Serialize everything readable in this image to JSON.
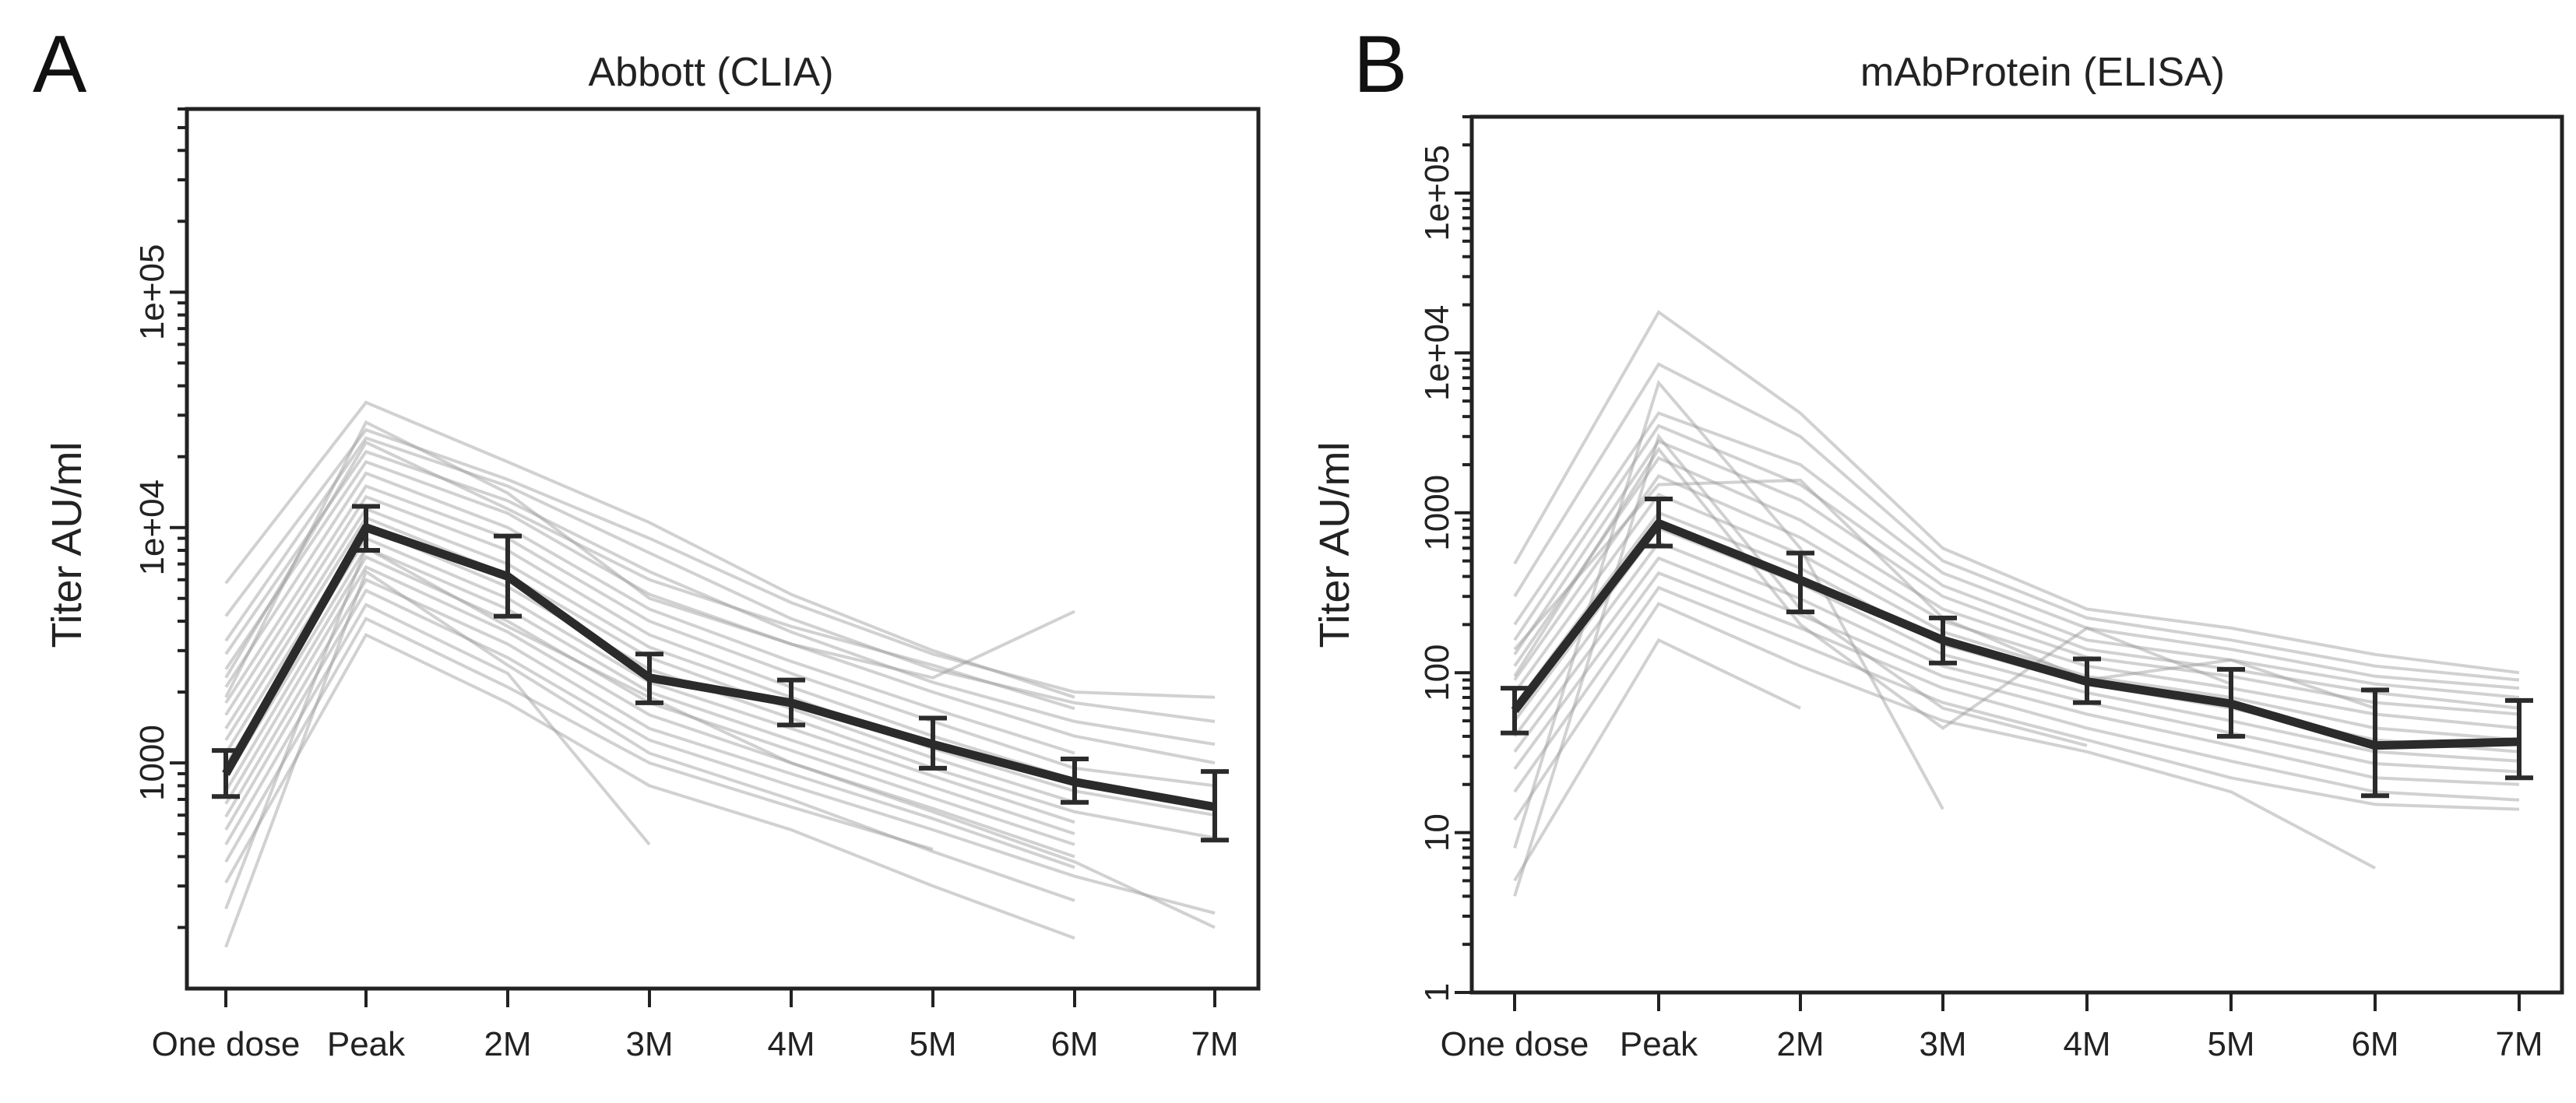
{
  "chart_data": [
    {
      "panel": "A",
      "type": "line",
      "title": "Abbott (CLIA)",
      "xlabel": "",
      "ylabel": "Titer AU/ml",
      "y_scale": "log",
      "ylim": [
        110,
        600000
      ],
      "categories": [
        "One dose",
        "Peak",
        "2M",
        "3M",
        "4M",
        "5M",
        "6M",
        "7M"
      ],
      "y_ticks": [
        {
          "value": 1000,
          "label": "1000"
        },
        {
          "value": 10000,
          "label": "1e+04"
        },
        {
          "value": 100000,
          "label": "1e+05"
        }
      ],
      "mean_series": {
        "name": "mean",
        "values": [
          900,
          10000,
          6200,
          2300,
          1800,
          1200,
          830,
          650
        ],
        "err_low": [
          720,
          8000,
          4200,
          1800,
          1450,
          950,
          680,
          470
        ],
        "err_high": [
          1130,
          12300,
          9200,
          2900,
          2250,
          1550,
          1040,
          920
        ]
      },
      "individual_series": [
        {
          "name": "s1",
          "x": [
            0,
            1,
            2,
            3,
            4,
            5,
            6
          ],
          "values": [
            5800,
            34000,
            19000,
            10500,
            5200,
            3000,
            1900
          ]
        },
        {
          "name": "s2",
          "x": [
            0,
            1,
            2,
            3,
            4,
            5,
            6,
            7
          ],
          "values": [
            4200,
            26000,
            16000,
            9000,
            4800,
            2900,
            2000,
            1900
          ]
        },
        {
          "name": "s3",
          "x": [
            0,
            1,
            2,
            3,
            4,
            5,
            6,
            7
          ],
          "values": [
            3300,
            24000,
            15000,
            7800,
            4100,
            2500,
            1800,
            1500
          ]
        },
        {
          "name": "s4",
          "x": [
            0,
            1,
            2,
            3,
            4,
            5,
            6,
            7
          ],
          "values": [
            2900,
            21000,
            13000,
            6500,
            3600,
            2200,
            1500,
            1200
          ]
        },
        {
          "name": "s5",
          "x": [
            0,
            1,
            2,
            3,
            4,
            5,
            6,
            7
          ],
          "values": [
            2500,
            19000,
            11500,
            5200,
            3200,
            2000,
            1300,
            1000
          ]
        },
        {
          "name": "s6",
          "x": [
            0,
            1,
            2,
            3,
            4,
            5,
            6
          ],
          "values": [
            2100,
            17000,
            10000,
            4500,
            2700,
            1700,
            1100
          ]
        },
        {
          "name": "s7",
          "x": [
            0,
            1,
            2,
            3,
            4,
            5,
            6,
            7
          ],
          "values": [
            1800,
            15000,
            9000,
            4000,
            2400,
            1500,
            950,
            800
          ]
        },
        {
          "name": "s8",
          "x": [
            0,
            1,
            2,
            3,
            4,
            5,
            6
          ],
          "values": [
            1600,
            13500,
            8000,
            3500,
            2100,
            1300,
            850
          ]
        },
        {
          "name": "s9",
          "x": [
            0,
            1,
            2,
            3,
            4,
            5,
            6,
            7
          ],
          "values": [
            1400,
            12000,
            7000,
            3100,
            1900,
            1150,
            760,
            600
          ]
        },
        {
          "name": "s10",
          "x": [
            0,
            1,
            2,
            3,
            4,
            5,
            6
          ],
          "values": [
            1250,
            11000,
            6300,
            2800,
            1700,
            1050,
            680
          ]
        },
        {
          "name": "s11",
          "x": [
            0,
            1,
            2,
            3,
            4,
            5,
            6,
            7
          ],
          "values": [
            1100,
            10000,
            5600,
            2500,
            1550,
            950,
            620,
            480
          ]
        },
        {
          "name": "s12",
          "x": [
            0,
            1,
            2,
            3,
            4,
            5,
            6
          ],
          "values": [
            980,
            9000,
            5000,
            2200,
            1400,
            880,
            560
          ]
        },
        {
          "name": "s13",
          "x": [
            0,
            1,
            2,
            3,
            4,
            5,
            6
          ],
          "values": [
            860,
            8200,
            4500,
            2000,
            1250,
            790,
            500
          ]
        },
        {
          "name": "s14",
          "x": [
            0,
            1,
            2,
            3,
            4,
            5,
            6
          ],
          "values": [
            760,
            7500,
            4000,
            1800,
            1130,
            710,
            450
          ]
        },
        {
          "name": "s15",
          "x": [
            0,
            1,
            2,
            3,
            4,
            5,
            6
          ],
          "values": [
            670,
            6800,
            3600,
            1600,
            1000,
            640,
            400
          ]
        },
        {
          "name": "s16",
          "x": [
            0,
            1,
            2,
            3,
            4,
            5,
            6
          ],
          "values": [
            590,
            6000,
            3200,
            1400,
            900,
            580,
            360
          ]
        },
        {
          "name": "s17",
          "x": [
            0,
            1,
            2,
            3,
            4,
            5,
            6,
            7
          ],
          "values": [
            520,
            5400,
            2800,
            1250,
            800,
            520,
            330,
            230
          ]
        },
        {
          "name": "s18",
          "x": [
            0,
            1,
            2,
            3
          ],
          "values": [
            450,
            4700,
            2400,
            450
          ]
        },
        {
          "name": "s19",
          "x": [
            0,
            1,
            2,
            3,
            4,
            5
          ],
          "values": [
            380,
            4100,
            2100,
            1000,
            650,
            430
          ]
        },
        {
          "name": "s20",
          "x": [
            0,
            1,
            2,
            3,
            4,
            5,
            6
          ],
          "values": [
            310,
            3500,
            1800,
            800,
            520,
            300,
            180
          ]
        },
        {
          "name": "s21",
          "x": [
            0,
            1,
            2,
            3,
            4,
            5,
            6,
            7
          ],
          "values": [
            240,
            8200,
            3800,
            1900,
            1000,
            620,
            380,
            200
          ]
        },
        {
          "name": "s22",
          "x": [
            0,
            1,
            2,
            3,
            4,
            5,
            6
          ],
          "values": [
            165,
            6500,
            2600,
            1100,
            700,
            420,
            260
          ]
        },
        {
          "name": "s23",
          "x": [
            0,
            1,
            2,
            3,
            4,
            5,
            6
          ],
          "values": [
            1900,
            28000,
            14000,
            5000,
            3200,
            2300,
            4400
          ]
        },
        {
          "name": "s24",
          "x": [
            0,
            1,
            2,
            3,
            4,
            5,
            6
          ],
          "values": [
            2300,
            23000,
            12000,
            6000,
            3800,
            2600,
            1700
          ]
        }
      ]
    },
    {
      "panel": "B",
      "type": "line",
      "title": "mAbProtein (ELISA)",
      "xlabel": "",
      "ylabel": "Titer AU/ml",
      "y_scale": "log",
      "ylim": [
        1,
        300000
      ],
      "categories": [
        "One dose",
        "Peak",
        "2M",
        "3M",
        "4M",
        "5M",
        "6M",
        "7M"
      ],
      "y_ticks": [
        {
          "value": 1,
          "label": "1"
        },
        {
          "value": 10,
          "label": "10"
        },
        {
          "value": 100,
          "label": "100"
        },
        {
          "value": 1000,
          "label": "1000"
        },
        {
          "value": 10000,
          "label": "1e+04"
        },
        {
          "value": 100000,
          "label": "1e+05"
        }
      ],
      "mean_series": {
        "name": "mean",
        "values": [
          58,
          860,
          380,
          160,
          88,
          64,
          35,
          37
        ],
        "err_low": [
          42,
          620,
          240,
          115,
          65,
          40,
          17,
          22
        ],
        "err_high": [
          80,
          1220,
          560,
          220,
          122,
          105,
          78,
          67
        ]
      },
      "individual_series": [
        {
          "name": "s1",
          "x": [
            0,
            1,
            2,
            3,
            4,
            5,
            6,
            7
          ],
          "values": [
            480,
            18000,
            4200,
            600,
            250,
            190,
            130,
            100
          ]
        },
        {
          "name": "s2",
          "x": [
            0,
            1,
            2,
            3,
            4,
            5,
            6,
            7
          ],
          "values": [
            300,
            8500,
            3000,
            500,
            220,
            160,
            110,
            90
          ]
        },
        {
          "name": "s3",
          "x": [
            0,
            1,
            2,
            3,
            4,
            5,
            6,
            7
          ],
          "values": [
            200,
            4200,
            2000,
            420,
            190,
            140,
            95,
            80
          ]
        },
        {
          "name": "s4",
          "x": [
            0,
            1,
            2,
            3,
            4,
            5,
            6,
            7
          ],
          "values": [
            160,
            3500,
            1500,
            350,
            160,
            120,
            85,
            70
          ]
        },
        {
          "name": "s5",
          "x": [
            0,
            1,
            2,
            3,
            4,
            5,
            6,
            7
          ],
          "values": [
            130,
            2800,
            1200,
            300,
            140,
            105,
            75,
            60
          ]
        },
        {
          "name": "s6",
          "x": [
            0,
            1,
            2,
            3,
            4,
            5,
            6,
            7
          ],
          "values": [
            110,
            2200,
            900,
            250,
            125,
            95,
            65,
            55
          ]
        },
        {
          "name": "s7",
          "x": [
            0,
            1,
            2,
            3,
            4,
            5,
            6,
            7
          ],
          "values": [
            90,
            1700,
            700,
            210,
            110,
            80,
            55,
            45
          ]
        },
        {
          "name": "s8",
          "x": [
            0,
            1,
            2,
            3,
            4,
            5,
            6,
            7
          ],
          "values": [
            75,
            1300,
            550,
            180,
            95,
            70,
            45,
            38
          ]
        },
        {
          "name": "s9",
          "x": [
            0,
            1,
            2,
            3,
            4,
            5,
            6,
            7
          ],
          "values": [
            62,
            1000,
            450,
            150,
            85,
            60,
            38,
            32
          ]
        },
        {
          "name": "s10",
          "x": [
            0,
            1,
            2,
            3,
            4,
            5,
            6,
            7
          ],
          "values": [
            50,
            800,
            360,
            130,
            75,
            50,
            32,
            28
          ]
        },
        {
          "name": "s11",
          "x": [
            0,
            1,
            2,
            3,
            4,
            5,
            6,
            7
          ],
          "values": [
            40,
            650,
            290,
            110,
            65,
            42,
            27,
            24
          ]
        },
        {
          "name": "s12",
          "x": [
            0,
            1,
            2,
            3,
            4,
            5,
            6,
            7
          ],
          "values": [
            32,
            520,
            230,
            95,
            55,
            35,
            22,
            20
          ]
        },
        {
          "name": "s13",
          "x": [
            0,
            1,
            2,
            3,
            4,
            5,
            6,
            7
          ],
          "values": [
            25,
            420,
            190,
            80,
            45,
            28,
            18,
            16
          ]
        },
        {
          "name": "s14",
          "x": [
            0,
            1,
            2,
            3,
            4,
            5,
            6,
            7
          ],
          "values": [
            18,
            340,
            150,
            65,
            38,
            22,
            15,
            14
          ]
        },
        {
          "name": "s15",
          "x": [
            0,
            1,
            2,
            3,
            4,
            5,
            6
          ],
          "values": [
            12,
            270,
            110,
            50,
            32,
            18,
            6
          ]
        },
        {
          "name": "s16",
          "x": [
            0,
            1,
            2,
            3
          ],
          "values": [
            8,
            6500,
            600,
            14
          ]
        },
        {
          "name": "s17",
          "x": [
            0,
            1,
            2
          ],
          "values": [
            5,
            160,
            60
          ]
        },
        {
          "name": "s18",
          "x": [
            0,
            1,
            2,
            3,
            4
          ],
          "values": [
            4,
            3000,
            250,
            60,
            35
          ]
        },
        {
          "name": "s19",
          "x": [
            0,
            1,
            2,
            3,
            4,
            5
          ],
          "values": [
            95,
            2500,
            200,
            45,
            190,
            85
          ]
        },
        {
          "name": "s20",
          "x": [
            0,
            1,
            2,
            3,
            4,
            5,
            6
          ],
          "values": [
            140,
            1500,
            1600,
            220,
            90,
            120,
            60
          ]
        }
      ]
    }
  ],
  "panel_labels": [
    "A",
    "B"
  ]
}
